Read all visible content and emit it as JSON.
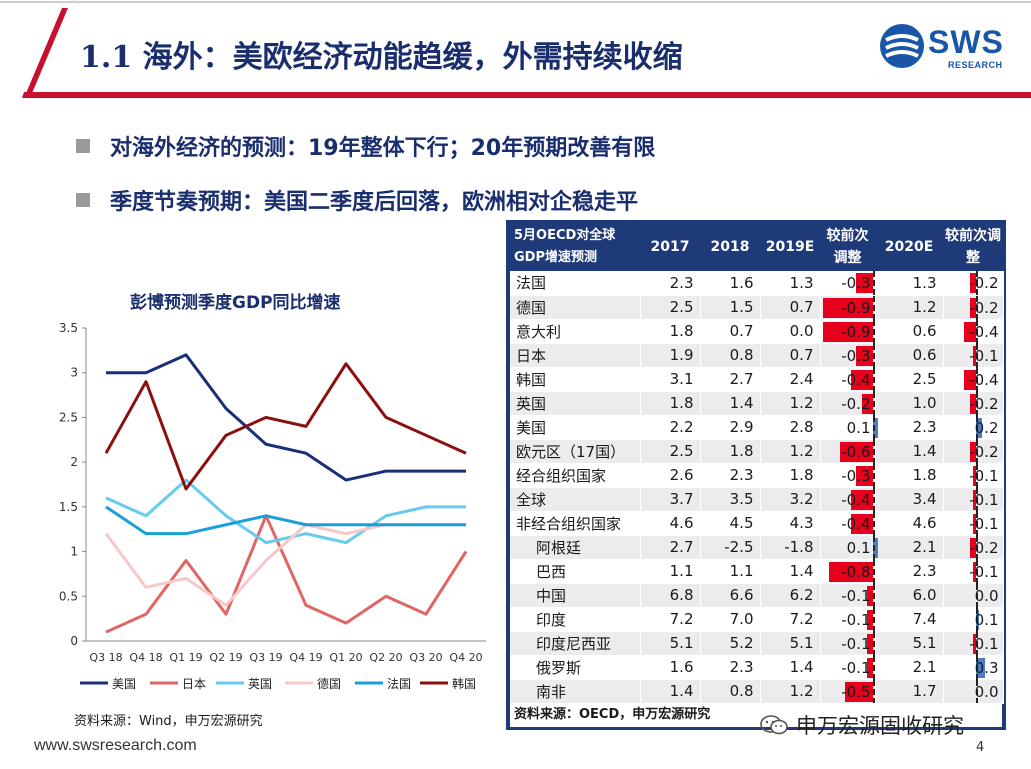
{
  "header": {
    "title": "1.1 海外：美欧经济动能趋缓，外需持续收缩",
    "logo_text": "SWS",
    "logo_sub": "RESEARCH"
  },
  "bullets": [
    "对海外经济的预测：19年整体下行；20年预期改善有限",
    "季度节奏预期：美国二季度后回落，欧洲相对企稳走平"
  ],
  "colors": {
    "title_blue": "#1a2e6e",
    "header_red": "#c8102e",
    "table_header": "#1f3a78",
    "bar_negative": "#e8001c",
    "bar_positive": "#4a7cc7"
  },
  "chart_data": {
    "type": "line",
    "title": "彭博预测季度GDP同比增速",
    "categories": [
      "Q3 18",
      "Q4 18",
      "Q1 19",
      "Q2 19",
      "Q3 19",
      "Q4 19",
      "Q1 20",
      "Q2 20",
      "Q3 20",
      "Q4 20"
    ],
    "ylim": [
      0,
      3.5
    ],
    "yticks": [
      "0",
      "0.5",
      "1",
      "1.5",
      "2",
      "2.5",
      "3",
      "3.5"
    ],
    "legend_position": "bottom",
    "series": [
      {
        "name": "美国",
        "color": "#1a2e7a",
        "values": [
          3.0,
          3.0,
          3.2,
          2.6,
          2.2,
          2.1,
          1.8,
          1.9,
          1.9,
          1.9
        ]
      },
      {
        "name": "日本",
        "color": "#e06666",
        "values": [
          0.1,
          0.3,
          0.9,
          0.3,
          1.4,
          0.4,
          0.2,
          0.5,
          0.3,
          1.0
        ]
      },
      {
        "name": "英国",
        "color": "#66ccee",
        "values": [
          1.6,
          1.4,
          1.8,
          1.4,
          1.1,
          1.2,
          1.1,
          1.4,
          1.5,
          1.5
        ]
      },
      {
        "name": "德国",
        "color": "#f8c8c8",
        "values": [
          1.2,
          0.6,
          0.7,
          0.4,
          0.9,
          1.3,
          1.2,
          1.3,
          1.3,
          1.3
        ]
      },
      {
        "name": "法国",
        "color": "#1a9fd6",
        "values": [
          1.5,
          1.2,
          1.2,
          1.3,
          1.4,
          1.3,
          1.3,
          1.3,
          1.3,
          1.3
        ]
      },
      {
        "name": "韩国",
        "color": "#8b0f0f",
        "values": [
          2.1,
          2.9,
          1.7,
          2.3,
          2.5,
          2.4,
          3.1,
          2.5,
          2.3,
          2.1
        ]
      }
    ]
  },
  "table": {
    "header_line1": "5月OECD对全球",
    "header_line2": "GDP增速预测",
    "columns": [
      "2017",
      "2018",
      "2019E",
      "较前次调整",
      "2020E",
      "较前次调整"
    ],
    "rows": [
      {
        "name": "法国",
        "indent": false,
        "y2017": "2.3",
        "y2018": "1.6",
        "y2019": "1.3",
        "adj2019": -0.3,
        "adj2019_label": "-0.3",
        "y2020": "1.3",
        "adj2020": -0.2,
        "adj2020_label": "-0.2"
      },
      {
        "name": "德国",
        "indent": false,
        "y2017": "2.5",
        "y2018": "1.5",
        "y2019": "0.7",
        "adj2019": -0.9,
        "adj2019_label": "-0.9",
        "y2020": "1.2",
        "adj2020": -0.2,
        "adj2020_label": "-0.2"
      },
      {
        "name": "意大利",
        "indent": false,
        "y2017": "1.8",
        "y2018": "0.7",
        "y2019": "0.0",
        "adj2019": -0.9,
        "adj2019_label": "-0.9",
        "y2020": "0.6",
        "adj2020": -0.4,
        "adj2020_label": "-0.4"
      },
      {
        "name": "日本",
        "indent": false,
        "y2017": "1.9",
        "y2018": "0.8",
        "y2019": "0.7",
        "adj2019": -0.3,
        "adj2019_label": "-0.3",
        "y2020": "0.6",
        "adj2020": -0.1,
        "adj2020_label": "-0.1"
      },
      {
        "name": "韩国",
        "indent": false,
        "y2017": "3.1",
        "y2018": "2.7",
        "y2019": "2.4",
        "adj2019": -0.4,
        "adj2019_label": "-0.4",
        "y2020": "2.5",
        "adj2020": -0.4,
        "adj2020_label": "-0.4"
      },
      {
        "name": "英国",
        "indent": false,
        "y2017": "1.8",
        "y2018": "1.4",
        "y2019": "1.2",
        "adj2019": -0.2,
        "adj2019_label": "-0.2",
        "y2020": "1.0",
        "adj2020": -0.2,
        "adj2020_label": "-0.2"
      },
      {
        "name": "美国",
        "indent": false,
        "y2017": "2.2",
        "y2018": "2.9",
        "y2019": "2.8",
        "adj2019": 0.1,
        "adj2019_label": "0.1",
        "y2020": "2.3",
        "adj2020": 0.2,
        "adj2020_label": "0.2"
      },
      {
        "name": "欧元区（17国）",
        "indent": false,
        "y2017": "2.5",
        "y2018": "1.8",
        "y2019": "1.2",
        "adj2019": -0.6,
        "adj2019_label": "-0.6",
        "y2020": "1.4",
        "adj2020": -0.2,
        "adj2020_label": "-0.2"
      },
      {
        "name": "经合组织国家",
        "indent": false,
        "y2017": "2.6",
        "y2018": "2.3",
        "y2019": "1.8",
        "adj2019": -0.3,
        "adj2019_label": "-0.3",
        "y2020": "1.8",
        "adj2020": -0.1,
        "adj2020_label": "-0.1"
      },
      {
        "name": "全球",
        "indent": false,
        "y2017": "3.7",
        "y2018": "3.5",
        "y2019": "3.2",
        "adj2019": -0.4,
        "adj2019_label": "-0.4",
        "y2020": "3.4",
        "adj2020": -0.1,
        "adj2020_label": "-0.1"
      },
      {
        "name": "非经合组织国家",
        "indent": false,
        "y2017": "4.6",
        "y2018": "4.5",
        "y2019": "4.3",
        "adj2019": -0.4,
        "adj2019_label": "-0.4",
        "y2020": "4.6",
        "adj2020": -0.1,
        "adj2020_label": "-0.1"
      },
      {
        "name": "阿根廷",
        "indent": true,
        "y2017": "2.7",
        "y2018": "-2.5",
        "y2019": "-1.8",
        "adj2019": 0.1,
        "adj2019_label": "0.1",
        "y2020": "2.1",
        "adj2020": -0.2,
        "adj2020_label": "-0.2"
      },
      {
        "name": "巴西",
        "indent": true,
        "y2017": "1.1",
        "y2018": "1.1",
        "y2019": "1.4",
        "adj2019": -0.8,
        "adj2019_label": "-0.8",
        "y2020": "2.3",
        "adj2020": -0.1,
        "adj2020_label": "-0.1"
      },
      {
        "name": "中国",
        "indent": true,
        "y2017": "6.8",
        "y2018": "6.6",
        "y2019": "6.2",
        "adj2019": -0.1,
        "adj2019_label": "-0.1",
        "y2020": "6.0",
        "adj2020": 0.0,
        "adj2020_label": "0.0"
      },
      {
        "name": "印度",
        "indent": true,
        "y2017": "7.2",
        "y2018": "7.0",
        "y2019": "7.2",
        "adj2019": -0.1,
        "adj2019_label": "-0.1",
        "y2020": "7.4",
        "adj2020": 0.1,
        "adj2020_label": "0.1"
      },
      {
        "name": "印度尼西亚",
        "indent": true,
        "y2017": "5.1",
        "y2018": "5.2",
        "y2019": "5.1",
        "adj2019": -0.1,
        "adj2019_label": "-0.1",
        "y2020": "5.1",
        "adj2020": -0.1,
        "adj2020_label": "-0.1"
      },
      {
        "name": "俄罗斯",
        "indent": true,
        "y2017": "1.6",
        "y2018": "2.3",
        "y2019": "1.4",
        "adj2019": -0.1,
        "adj2019_label": "-0.1",
        "y2020": "2.1",
        "adj2020": 0.3,
        "adj2020_label": "0.3"
      },
      {
        "name": "南非",
        "indent": true,
        "y2017": "1.4",
        "y2018": "0.8",
        "y2019": "1.2",
        "adj2019": -0.5,
        "adj2019_label": "-0.5",
        "y2020": "1.7",
        "adj2020": 0.0,
        "adj2020_label": "0.0"
      }
    ],
    "source": "资料来源：OECD，申万宏源研究"
  },
  "source_left": "资料来源：Wind，申万宏源研究",
  "footer": {
    "url": "www.swsresearch.com",
    "page": "4",
    "watermark": "申万宏源固收研究"
  }
}
